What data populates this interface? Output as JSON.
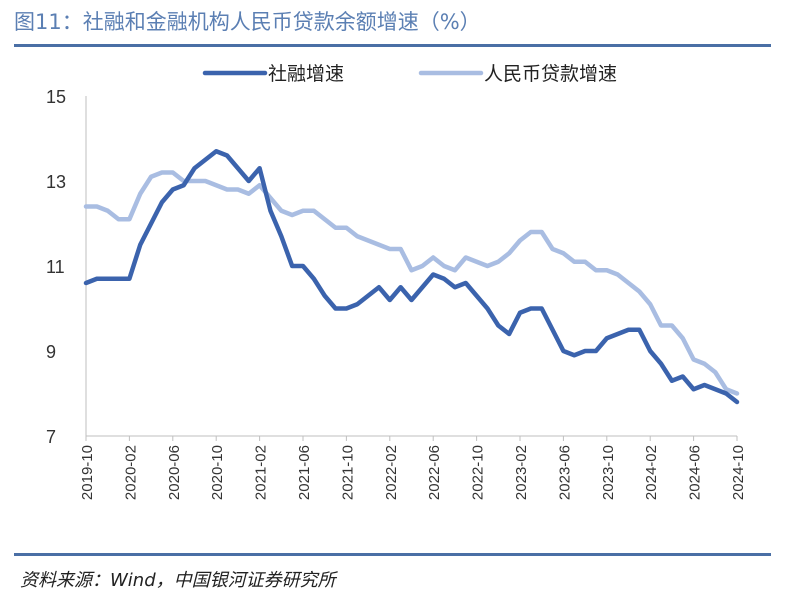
{
  "figure": {
    "title": "图11：社融和金融机构人民币贷款余额增速（%）",
    "source": "资料来源：Wind，中国银河证券研究所"
  },
  "colors": {
    "accent": "#4a6fa5",
    "series1": "#3b63ad",
    "series2": "#a9bde2"
  },
  "chart_data": {
    "type": "line",
    "ylim": [
      7,
      15
    ],
    "yticks": [
      7,
      9,
      11,
      13,
      15
    ],
    "grid": false,
    "legend_position": "top",
    "x": [
      "2019-10",
      "2019-11",
      "2019-12",
      "2020-01",
      "2020-02",
      "2020-03",
      "2020-04",
      "2020-05",
      "2020-06",
      "2020-07",
      "2020-08",
      "2020-09",
      "2020-10",
      "2020-11",
      "2020-12",
      "2021-01",
      "2021-02",
      "2021-03",
      "2021-04",
      "2021-05",
      "2021-06",
      "2021-07",
      "2021-08",
      "2021-09",
      "2021-10",
      "2021-11",
      "2021-12",
      "2022-01",
      "2022-02",
      "2022-03",
      "2022-04",
      "2022-05",
      "2022-06",
      "2022-07",
      "2022-08",
      "2022-09",
      "2022-10",
      "2022-11",
      "2022-12",
      "2023-01",
      "2023-02",
      "2023-03",
      "2023-04",
      "2023-05",
      "2023-06",
      "2023-07",
      "2023-08",
      "2023-09",
      "2023-10",
      "2023-11",
      "2023-12",
      "2024-01",
      "2024-02",
      "2024-03",
      "2024-04",
      "2024-05",
      "2024-06",
      "2024-07",
      "2024-08",
      "2024-09",
      "2024-10"
    ],
    "xtick_labels": [
      "2019-10",
      "2020-02",
      "2020-06",
      "2020-10",
      "2021-02",
      "2021-06",
      "2021-10",
      "2022-02",
      "2022-06",
      "2022-10",
      "2023-02",
      "2023-06",
      "2023-10",
      "2024-02",
      "2024-06",
      "2024-10"
    ],
    "series": [
      {
        "name": "社融增速",
        "values": [
          10.6,
          10.7,
          10.7,
          10.7,
          10.7,
          11.5,
          12.0,
          12.5,
          12.8,
          12.9,
          13.3,
          13.5,
          13.7,
          13.6,
          13.3,
          13.0,
          13.3,
          12.3,
          11.7,
          11.0,
          11.0,
          10.7,
          10.3,
          10.0,
          10.0,
          10.1,
          10.3,
          10.5,
          10.2,
          10.5,
          10.2,
          10.5,
          10.8,
          10.7,
          10.5,
          10.6,
          10.3,
          10.0,
          9.6,
          9.4,
          9.9,
          10.0,
          10.0,
          9.5,
          9.0,
          8.9,
          9.0,
          9.0,
          9.3,
          9.4,
          9.5,
          9.5,
          9.0,
          8.7,
          8.3,
          8.4,
          8.1,
          8.2,
          8.1,
          8.0,
          7.8
        ]
      },
      {
        "name": "人民币贷款增速",
        "values": [
          12.4,
          12.4,
          12.3,
          12.1,
          12.1,
          12.7,
          13.1,
          13.2,
          13.2,
          13.0,
          13.0,
          13.0,
          12.9,
          12.8,
          12.8,
          12.7,
          12.9,
          12.6,
          12.3,
          12.2,
          12.3,
          12.3,
          12.1,
          11.9,
          11.9,
          11.7,
          11.6,
          11.5,
          11.4,
          11.4,
          10.9,
          11.0,
          11.2,
          11.0,
          10.9,
          11.2,
          11.1,
          11.0,
          11.1,
          11.3,
          11.6,
          11.8,
          11.8,
          11.4,
          11.3,
          11.1,
          11.1,
          10.9,
          10.9,
          10.8,
          10.6,
          10.4,
          10.1,
          9.6,
          9.6,
          9.3,
          8.8,
          8.7,
          8.5,
          8.1,
          8.0
        ]
      }
    ]
  }
}
